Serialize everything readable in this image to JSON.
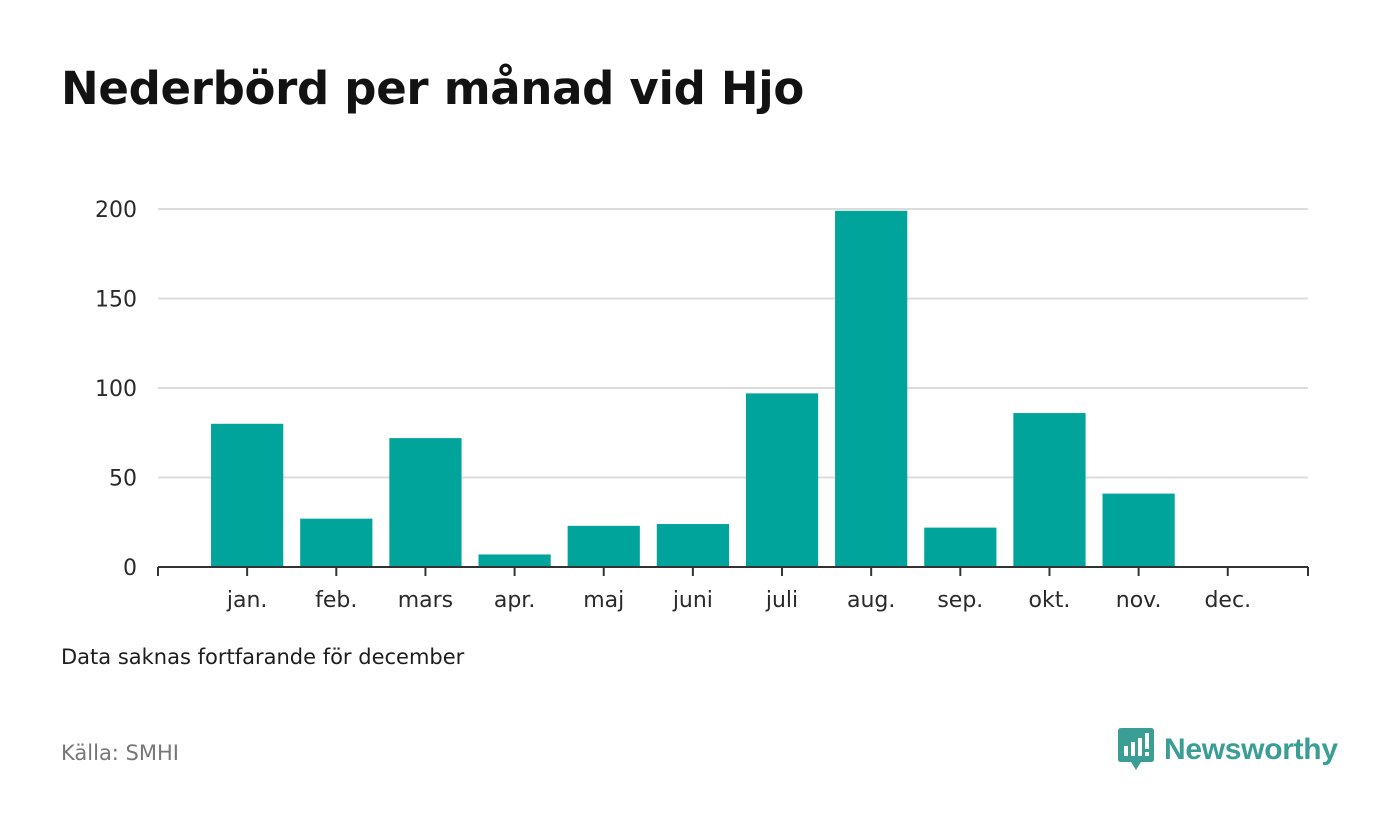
{
  "title": "Nederbörd per månad vid Hjo",
  "note": "Data saknas fortfarande för december",
  "source": "Källa: SMHI",
  "brand": {
    "name": "Newsworthy",
    "icon": "newsworthy-logo-icon",
    "color": "#3a9e94"
  },
  "chart_data": {
    "type": "bar",
    "title": "Nederbörd per månad vid Hjo",
    "xlabel": "",
    "ylabel": "",
    "categories": [
      "jan.",
      "feb.",
      "mars",
      "apr.",
      "maj",
      "juni",
      "juli",
      "aug.",
      "sep.",
      "okt.",
      "nov.",
      "dec."
    ],
    "values": [
      80,
      27,
      72,
      7,
      23,
      24,
      97,
      199,
      22,
      86,
      41,
      null
    ],
    "ylim": [
      0,
      200
    ],
    "yticks": [
      0,
      50,
      100,
      150,
      200
    ],
    "grid": true,
    "legend": "none",
    "bar_color": "#00a49a",
    "grid_color": "#dcdcdc",
    "axis_color": "#333333"
  }
}
